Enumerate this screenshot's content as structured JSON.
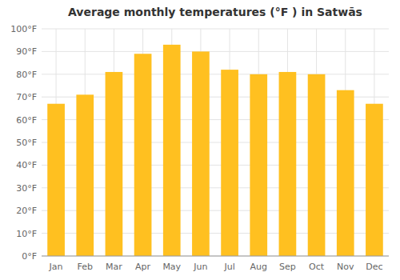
{
  "chart_data": {
    "type": "bar",
    "title": "Average monthly temperatures (°F ) in Satwās",
    "categories": [
      "Jan",
      "Feb",
      "Mar",
      "Apr",
      "May",
      "Jun",
      "Jul",
      "Aug",
      "Sep",
      "Oct",
      "Nov",
      "Dec"
    ],
    "values": [
      67,
      71,
      81,
      89,
      93,
      90,
      82,
      80,
      81,
      80,
      73,
      67
    ],
    "color": "#FFC020",
    "ylim": [
      0,
      100
    ],
    "yticks": [
      {
        "value": 0,
        "label": "0°F"
      },
      {
        "value": 10,
        "label": "10°F"
      },
      {
        "value": 20,
        "label": "20°F"
      },
      {
        "value": 30,
        "label": "30°F"
      },
      {
        "value": 40,
        "label": "40°F"
      },
      {
        "value": 50,
        "label": "50°F"
      },
      {
        "value": 60,
        "label": "60°F"
      },
      {
        "value": 70,
        "label": "70°F"
      },
      {
        "value": 80,
        "label": "80°F"
      },
      {
        "value": 90,
        "label": "90°F"
      },
      {
        "value": 100,
        "label": "100°F"
      }
    ],
    "grid": true
  }
}
